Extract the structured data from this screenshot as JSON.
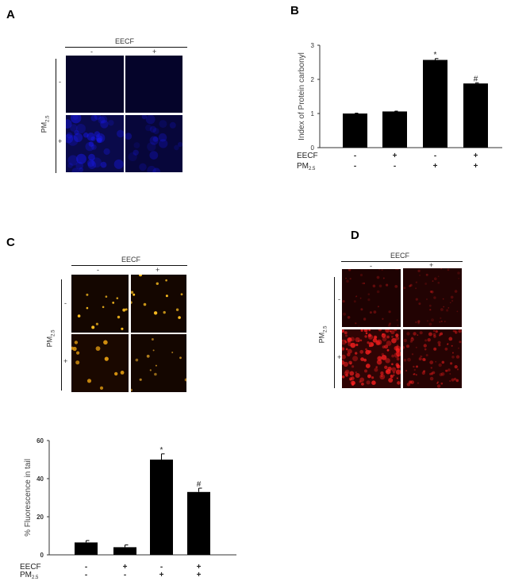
{
  "figure": {
    "panels": {
      "A": {
        "label": "A",
        "column_header": "EECF",
        "col_signs": [
          "-",
          "+"
        ],
        "row_header": {
          "main": "PM",
          "sub": "2.5"
        },
        "row_signs": [
          "-",
          "+"
        ],
        "stain_color": "#1a1aff"
      },
      "B": {
        "label": "B"
      },
      "C": {
        "label": "C",
        "column_header": "EECF",
        "col_signs": [
          "-",
          "+"
        ],
        "row_header": {
          "main": "PM",
          "sub": "2.5"
        },
        "row_signs": [
          "-",
          "+"
        ],
        "stain_color": "#ffc020"
      },
      "D": {
        "label": "D",
        "column_header": "EECF",
        "col_signs": [
          "-",
          "+"
        ],
        "row_header": {
          "main": "PM",
          "sub": "2.5"
        },
        "row_signs": [
          "-",
          "+"
        ],
        "stain_color": "#ff2020"
      }
    }
  },
  "chart_data": [
    {
      "id": "B",
      "type": "bar",
      "title": "",
      "ylabel": "Index of Protein carbonyl",
      "xlabel": "",
      "ylim": [
        0,
        3
      ],
      "yticks": [
        0,
        1,
        2,
        3
      ],
      "categories": [
        "1",
        "2",
        "3",
        "4"
      ],
      "values": [
        1.0,
        1.06,
        2.57,
        1.88
      ],
      "errors": [
        0.01,
        0.01,
        0.04,
        0.02
      ],
      "annotations": [
        "",
        "",
        "*",
        "#"
      ],
      "condition_rows": [
        {
          "label": "EECF",
          "sub": "",
          "signs": [
            "-",
            "+",
            "-",
            "+"
          ]
        },
        {
          "label": "PM",
          "sub": "2.5",
          "signs": [
            "-",
            "-",
            "+",
            "+"
          ]
        }
      ],
      "bar_color": "#000000",
      "grid": false
    },
    {
      "id": "C-quant",
      "type": "bar",
      "title": "",
      "ylabel": "% Fluorescence in tail",
      "xlabel": "",
      "ylim": [
        0,
        60
      ],
      "yticks": [
        0,
        20,
        40,
        60
      ],
      "categories": [
        "1",
        "2",
        "3",
        "4"
      ],
      "values": [
        6.5,
        4.0,
        50.0,
        33.0
      ],
      "errors": [
        1.0,
        1.2,
        3.0,
        2.0
      ],
      "annotations": [
        "",
        "",
        "*",
        "#"
      ],
      "condition_rows": [
        {
          "label": "EECF",
          "sub": "",
          "signs": [
            "-",
            "+",
            "-",
            "+"
          ]
        },
        {
          "label": "PM",
          "sub": "2.5",
          "signs": [
            "-",
            "-",
            "+",
            "+"
          ]
        }
      ],
      "bar_color": "#000000",
      "grid": false
    }
  ]
}
